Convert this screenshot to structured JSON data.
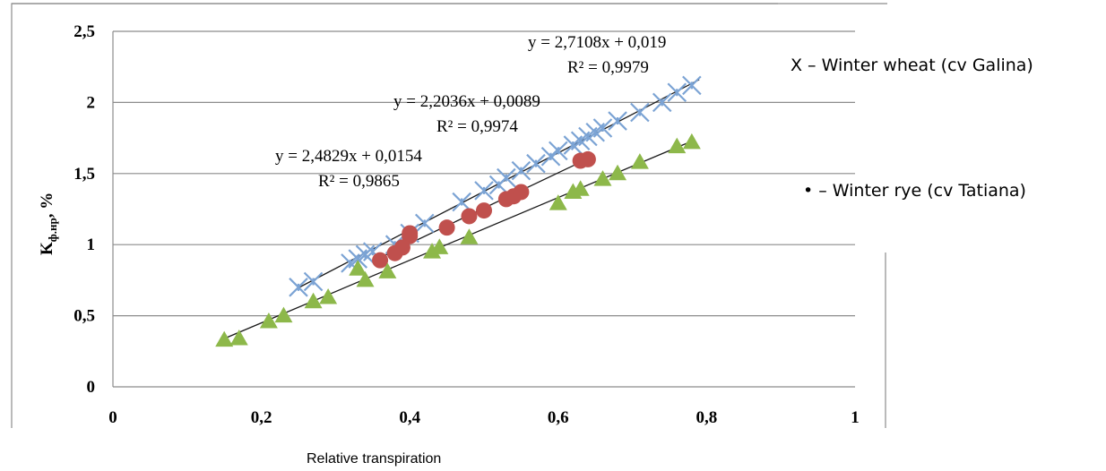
{
  "chart_data": {
    "type": "scatter",
    "xlabel": "Relative transpiration",
    "ylabel": "K",
    "ylabel_subscript": "ф.нр",
    "ylabel_suffix": ", %",
    "xlim": [
      0,
      1
    ],
    "ylim": [
      0,
      2.5
    ],
    "x_ticks": [
      "0",
      "0,2",
      "0,4",
      "0,6",
      "0,8",
      "1"
    ],
    "y_ticks": [
      "0",
      "0,5",
      "1",
      "1,5",
      "2",
      "2,5"
    ],
    "grid": "horizontal",
    "legend_position": "right",
    "series": [
      {
        "name": "Winter wheat (cv Galina)",
        "legend_label": "X – Winter wheat (cv Galina)",
        "marker": "x",
        "color": "#7ba3d4",
        "x": [
          0.25,
          0.27,
          0.32,
          0.33,
          0.34,
          0.35,
          0.38,
          0.4,
          0.42,
          0.47,
          0.5,
          0.52,
          0.53,
          0.55,
          0.57,
          0.59,
          0.6,
          0.62,
          0.63,
          0.64,
          0.65,
          0.66,
          0.68,
          0.71,
          0.74,
          0.76,
          0.78
        ],
        "y": [
          0.7,
          0.74,
          0.87,
          0.9,
          0.93,
          0.95,
          1.0,
          1.08,
          1.15,
          1.3,
          1.38,
          1.42,
          1.47,
          1.52,
          1.57,
          1.62,
          1.66,
          1.7,
          1.73,
          1.76,
          1.79,
          1.82,
          1.87,
          1.93,
          2.0,
          2.07,
          2.12
        ]
      },
      {
        "name": "Winter rye (cv Tatiana)",
        "legend_label": "• – Winter rye (cv Tatiana)",
        "marker": "circle",
        "color": "#c0504d",
        "x": [
          0.36,
          0.38,
          0.39,
          0.4,
          0.4,
          0.45,
          0.48,
          0.5,
          0.53,
          0.54,
          0.55,
          0.63,
          0.64
        ],
        "y": [
          0.89,
          0.94,
          0.98,
          1.06,
          1.08,
          1.12,
          1.2,
          1.24,
          1.32,
          1.34,
          1.37,
          1.59,
          1.6
        ]
      },
      {
        "name": "",
        "marker": "triangle",
        "color": "#8db84a",
        "x": [
          0.15,
          0.17,
          0.21,
          0.23,
          0.27,
          0.29,
          0.33,
          0.34,
          0.37,
          0.43,
          0.44,
          0.48,
          0.6,
          0.62,
          0.63,
          0.66,
          0.68,
          0.71,
          0.76,
          0.78
        ],
        "y": [
          0.33,
          0.34,
          0.46,
          0.5,
          0.6,
          0.63,
          0.83,
          0.75,
          0.81,
          0.95,
          0.98,
          1.05,
          1.29,
          1.37,
          1.39,
          1.46,
          1.5,
          1.58,
          1.69,
          1.72
        ]
      }
    ],
    "trendlines": [
      {
        "equation": "y = 2,7108x + 0,019",
        "r2": "R² = 0,9979",
        "slope": 2.7108,
        "intercept": 0.019,
        "x_range": [
          0.25,
          0.79
        ]
      },
      {
        "equation": "y = 2,2036x + 0,0089",
        "r2": "R² = 0,9974",
        "slope": 2.2036,
        "intercept": 0.0089,
        "x_range": [
          0.15,
          0.78
        ]
      },
      {
        "equation": "y = 2,4829x + 0,0154",
        "r2": "R² = 0,9865",
        "slope": 2.4829,
        "intercept": 0.0154,
        "x_range": [
          0.36,
          0.64
        ]
      }
    ]
  }
}
